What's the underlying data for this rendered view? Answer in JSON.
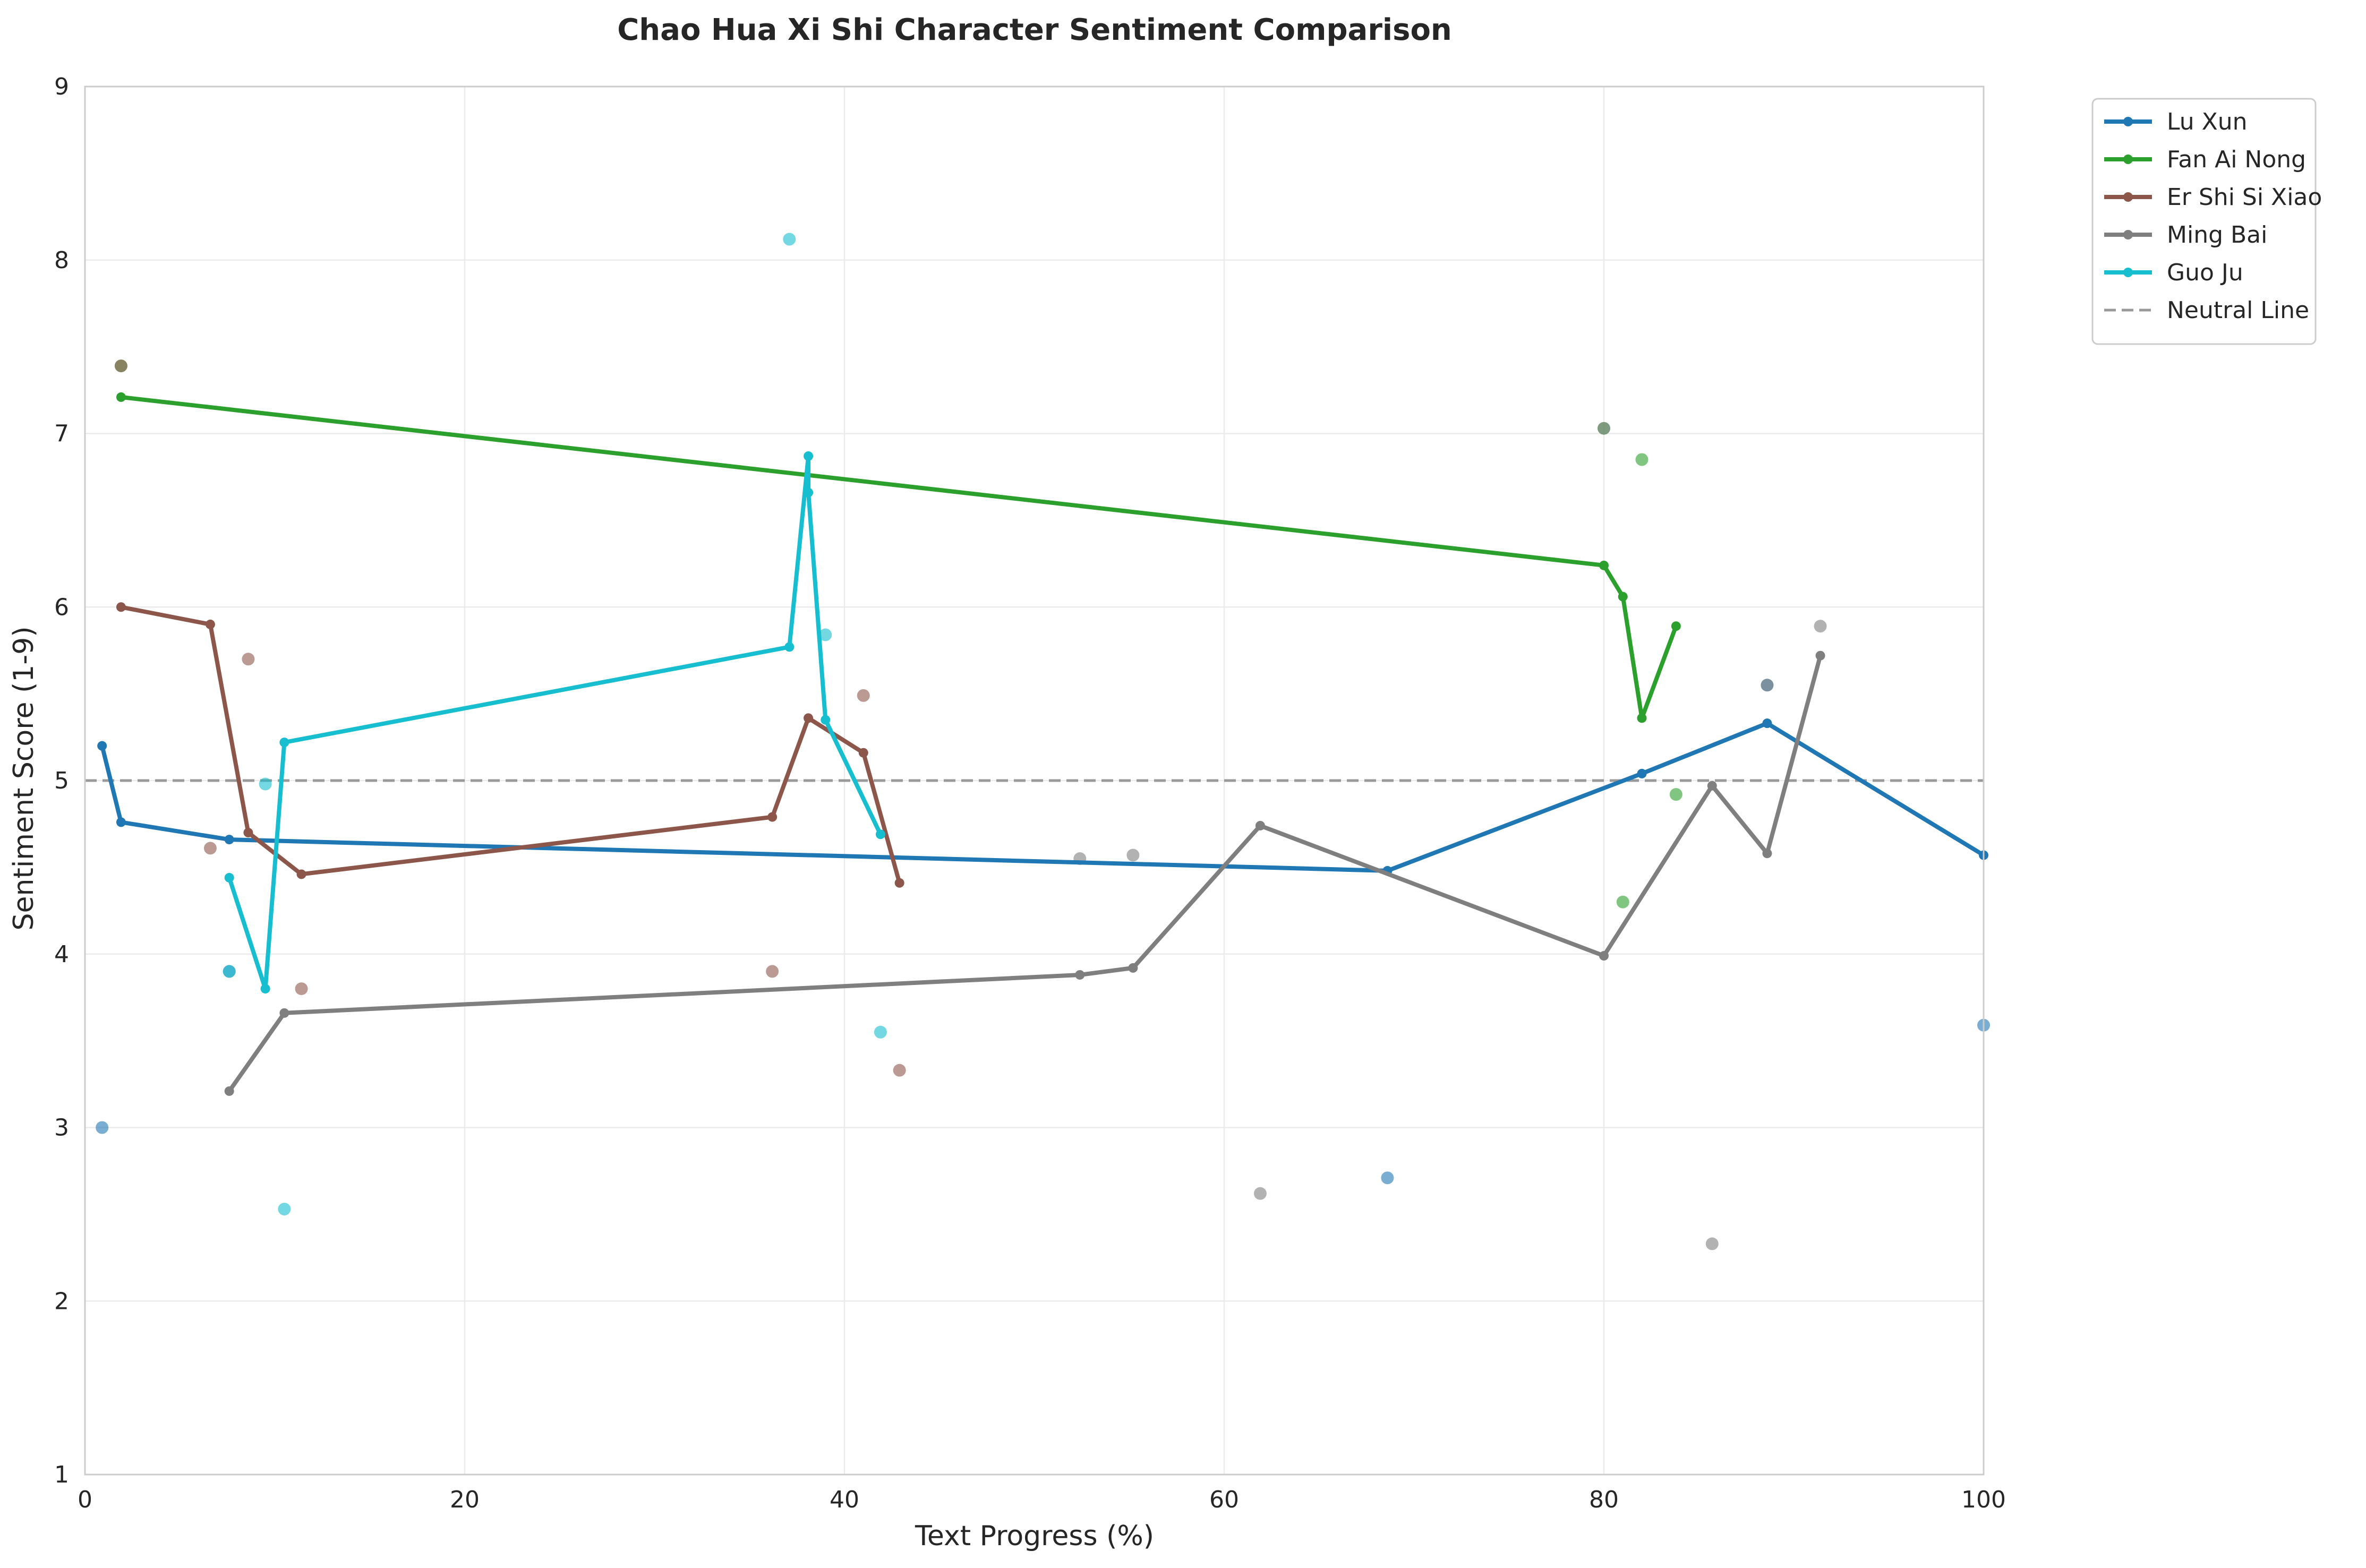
{
  "chart_data": {
    "type": "line",
    "title": "Chao Hua Xi Shi Character Sentiment Comparison",
    "xlabel": "Text Progress (%)",
    "ylabel": "Sentiment Score (1-9)",
    "xlim": [
      0,
      100
    ],
    "ylim": [
      1,
      9
    ],
    "xticks": [
      0,
      20,
      40,
      60,
      80,
      100
    ],
    "yticks": [
      1,
      2,
      3,
      4,
      5,
      6,
      7,
      8,
      9
    ],
    "grid": true,
    "legend_position": "outside-top-right",
    "neutral_line": {
      "label": "Neutral Line",
      "y": 5,
      "color": "#999999"
    },
    "series": [
      {
        "name": "Lu Xun",
        "color": "#1f77b4",
        "points": [
          [
            0.9,
            5.2
          ],
          [
            1.9,
            4.76
          ],
          [
            7.6,
            4.66
          ],
          [
            68.6,
            4.48
          ],
          [
            82.0,
            5.04
          ],
          [
            88.6,
            5.33
          ],
          [
            100,
            4.57
          ]
        ],
        "scatter": [
          [
            0.9,
            3.0
          ],
          [
            7.6,
            3.9
          ],
          [
            68.6,
            2.71
          ],
          [
            88.6,
            5.55
          ],
          [
            100,
            3.59
          ]
        ]
      },
      {
        "name": "Fan Ai Nong",
        "color": "#2ca02c",
        "points": [
          [
            1.9,
            7.21
          ],
          [
            80.0,
            6.24
          ],
          [
            81.0,
            6.06
          ],
          [
            82.0,
            5.36
          ],
          [
            83.8,
            5.89
          ]
        ],
        "scatter": [
          [
            1.9,
            7.39
          ],
          [
            80.0,
            7.03
          ],
          [
            81.0,
            4.3
          ],
          [
            82.0,
            6.85
          ],
          [
            83.8,
            4.92
          ]
        ]
      },
      {
        "name": "Er Shi Si Xiao",
        "color": "#8c564b",
        "points": [
          [
            1.9,
            6.0
          ],
          [
            6.6,
            5.9
          ],
          [
            8.6,
            4.7
          ],
          [
            11.4,
            4.46
          ],
          [
            36.2,
            4.79
          ],
          [
            38.1,
            5.36
          ],
          [
            41.0,
            5.16
          ],
          [
            42.9,
            4.41
          ]
        ],
        "scatter": [
          [
            1.9,
            7.39
          ],
          [
            6.6,
            4.61
          ],
          [
            8.6,
            5.7
          ],
          [
            11.4,
            3.8
          ],
          [
            36.2,
            3.9
          ],
          [
            41.0,
            5.49
          ],
          [
            42.9,
            3.33
          ]
        ]
      },
      {
        "name": "Ming Bai",
        "color": "#7f7f7f",
        "points": [
          [
            7.6,
            3.21
          ],
          [
            10.5,
            3.66
          ],
          [
            52.4,
            3.88
          ],
          [
            55.2,
            3.92
          ],
          [
            61.9,
            4.74
          ],
          [
            80.0,
            3.99
          ],
          [
            85.7,
            4.97
          ],
          [
            88.6,
            4.58
          ],
          [
            91.4,
            5.72
          ]
        ],
        "scatter": [
          [
            52.4,
            4.55
          ],
          [
            55.2,
            4.57
          ],
          [
            61.9,
            2.62
          ],
          [
            80.0,
            7.03
          ],
          [
            85.7,
            2.33
          ],
          [
            88.6,
            5.55
          ],
          [
            91.4,
            5.89
          ]
        ]
      },
      {
        "name": "Guo Ju",
        "color": "#17becf",
        "points": [
          [
            7.6,
            4.44
          ],
          [
            9.5,
            3.8
          ],
          [
            10.5,
            5.22
          ],
          [
            37.1,
            5.77
          ],
          [
            38.1,
            6.87
          ],
          [
            38.1,
            6.66
          ],
          [
            39.0,
            5.35
          ],
          [
            41.9,
            4.69
          ]
        ],
        "scatter": [
          [
            7.6,
            3.9
          ],
          [
            9.5,
            4.98
          ],
          [
            10.5,
            2.53
          ],
          [
            37.1,
            8.12
          ],
          [
            39.0,
            5.84
          ],
          [
            41.9,
            3.55
          ]
        ]
      }
    ]
  }
}
